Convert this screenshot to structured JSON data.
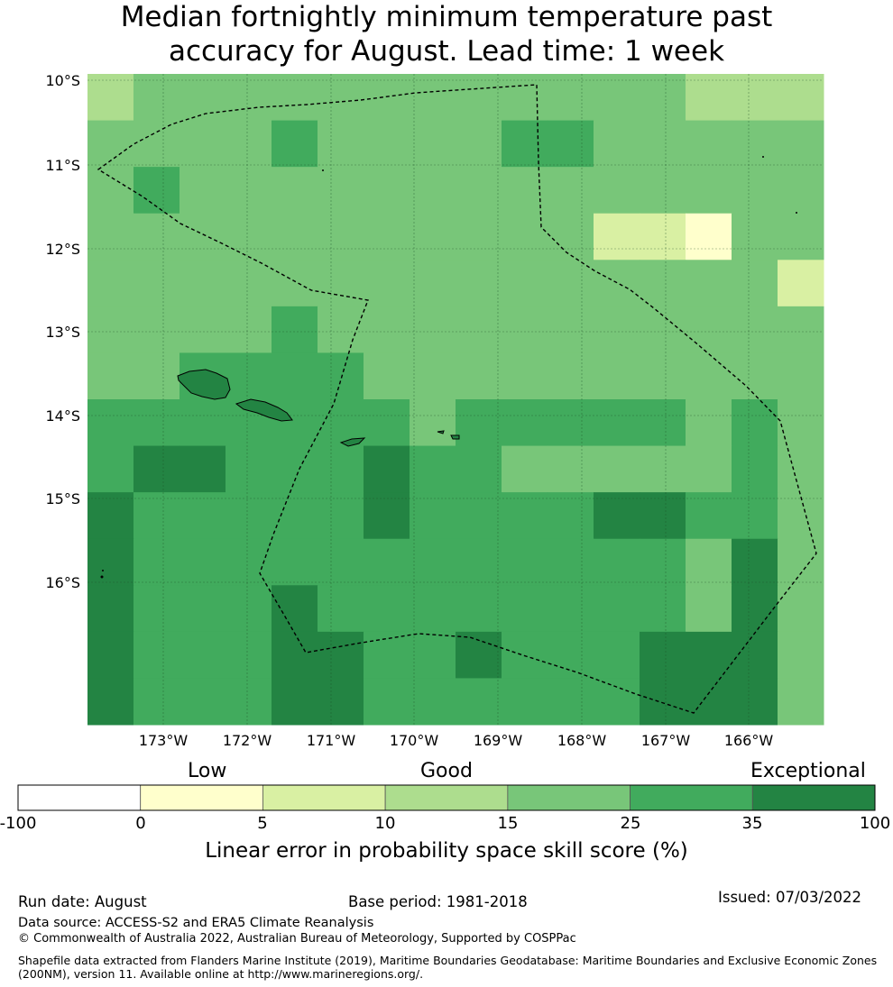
{
  "title_line1": "Median fortnightly minimum temperature past",
  "title_line2": "accuracy for August. Lead time: 1 week",
  "map": {
    "lat_ticks": [
      "10°S",
      "11°S",
      "12°S",
      "13°S",
      "14°S",
      "15°S",
      "16°S"
    ],
    "lon_ticks": [
      "173°W",
      "172°W",
      "171°W",
      "170°W",
      "169°W",
      "168°W",
      "167°W",
      "166°W"
    ],
    "grid_cols": 16,
    "grid_rows": 14,
    "cells": [
      "2333333333333222",
      "3333433334433333",
      "3433333333333333",
      "3333333333311033",
      "3333333333333331",
      "3333433333333333",
      "3344443333333333",
      "4444444344444343",
      "4554445443333343",
      "5444445444455443",
      "5444444444444353",
      "5444544444444353",
      "5444554454445553",
      "5444554444445553"
    ]
  },
  "colorbar": {
    "categories": [
      "Low",
      "Good",
      "Exceptional"
    ],
    "bounds": [
      "-100",
      "0",
      "5",
      "10",
      "15",
      "25",
      "35",
      "100"
    ],
    "colors": [
      "#ffffff",
      "#ffffcc",
      "#d9f0a3",
      "#addd8e",
      "#78c679",
      "#41ab5d",
      "#238443"
    ],
    "label": "Linear error in probability space skill score (%)"
  },
  "footer": {
    "run_date": "Run date: August",
    "base_period": "Base period: 1981-2018",
    "issued": "Issued: 07/03/2022",
    "data_source": "Data source: ACCESS-S2 and ERA5 Climate Reanalysis",
    "copyright": "© Commonwealth of Australia 2022, Australian Bureau of Meteorology, Supported by COSPPac",
    "shapefile_line1": "Shapefile data extracted from Flanders Marine Institute (2019), Maritime Boundaries Geodatabase: Maritime Boundaries and Exclusive Economic Zones",
    "shapefile_line2": "(200NM), version 11. Available online at http://www.marineregions.org/."
  }
}
